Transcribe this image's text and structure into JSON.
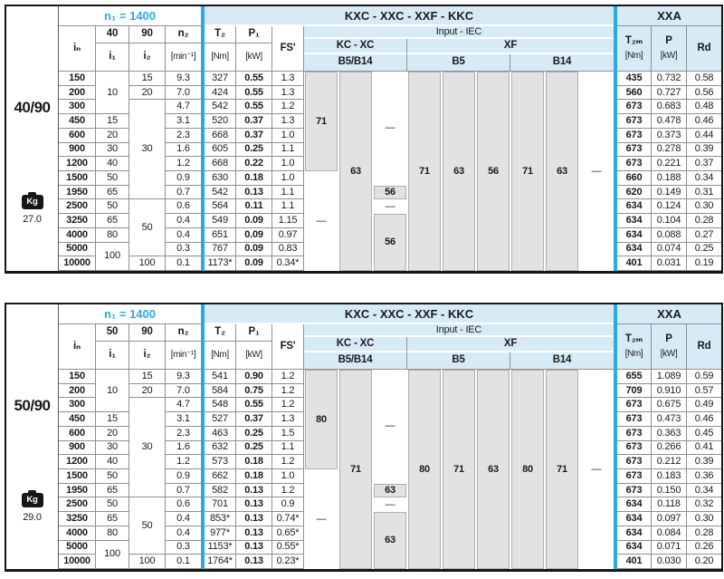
{
  "colors": {
    "cyan_accent": "#29abe2",
    "header_blue": "#d7ebf7",
    "iec_gray": "#e2e2e2",
    "grid_line": "#8f8f8f",
    "frame": "#161616"
  },
  "tables": [
    {
      "model": "40/90",
      "kg_label": "Kg",
      "weight": "27.0",
      "speed": "n₁ = 1400",
      "group_title": "KXC - XXC - XXF - KKC",
      "xxa_title": "XXA",
      "headers": {
        "in": "iₙ",
        "i1_ratio": "40",
        "i2_ratio": "90",
        "i1": "i₁",
        "i2": "i₂",
        "n2": "n₂",
        "n2_unit": "[min⁻¹]",
        "t2": "T₂",
        "t2_unit": "[Nm]",
        "p1": "P₁",
        "p1_unit": "[kW]",
        "fs": "FS'",
        "input_iec": "Input  -  IEC",
        "kc_xc": "KC - XC",
        "xf": "XF",
        "b5_b14": "B5/B14",
        "b5": "B5",
        "b14": "B14",
        "t2m": "T₂ₘ",
        "t2m_unit": "[Nm]",
        "p": "P",
        "p_unit": "[kW]",
        "rd": "Rd"
      },
      "i1_cells": [
        {
          "v": "10",
          "span": 3
        },
        {
          "v": "15",
          "span": 1
        },
        {
          "v": "20",
          "span": 1
        },
        {
          "v": "30",
          "span": 1
        },
        {
          "v": "40",
          "span": 1
        },
        {
          "v": "50",
          "span": 1
        },
        {
          "v": "65",
          "span": 1
        },
        {
          "v": "50",
          "span": 1
        },
        {
          "v": "65",
          "span": 1
        },
        {
          "v": "80",
          "span": 1
        },
        {
          "v": "100",
          "span": 2
        }
      ],
      "i2_cells": [
        {
          "v": "15",
          "span": 1
        },
        {
          "v": "20",
          "span": 1
        },
        {
          "v": "30",
          "span": 7
        },
        {
          "v": "50",
          "span": 4
        },
        {
          "v": "100",
          "span": 1
        }
      ],
      "rows": [
        {
          "in": "150",
          "n2": "9.3",
          "t2": "327",
          "p1": "0.55",
          "fs": "1.3",
          "t2m": "435",
          "p": "0.732",
          "rd": "0.58"
        },
        {
          "in": "200",
          "n2": "7.0",
          "t2": "424",
          "p1": "0.55",
          "fs": "1.3",
          "t2m": "560",
          "p": "0.727",
          "rd": "0.56"
        },
        {
          "in": "300",
          "n2": "4.7",
          "t2": "542",
          "p1": "0.55",
          "fs": "1.2",
          "t2m": "673",
          "p": "0.683",
          "rd": "0.48"
        },
        {
          "in": "450",
          "n2": "3.1",
          "t2": "520",
          "p1": "0.37",
          "fs": "1.3",
          "t2m": "673",
          "p": "0.478",
          "rd": "0.46"
        },
        {
          "in": "600",
          "n2": "2.3",
          "t2": "668",
          "p1": "0.37",
          "fs": "1.0",
          "t2m": "673",
          "p": "0.373",
          "rd": "0.44"
        },
        {
          "in": "900",
          "n2": "1.6",
          "t2": "605",
          "p1": "0.25",
          "fs": "1.1",
          "t2m": "673",
          "p": "0.278",
          "rd": "0.39"
        },
        {
          "in": "1200",
          "n2": "1.2",
          "t2": "668",
          "p1": "0.22",
          "fs": "1.0",
          "t2m": "673",
          "p": "0.221",
          "rd": "0.37"
        },
        {
          "in": "1500",
          "n2": "0.9",
          "t2": "630",
          "p1": "0.18",
          "fs": "1.0",
          "t2m": "660",
          "p": "0.188",
          "rd": "0.34"
        },
        {
          "in": "1950",
          "n2": "0.7",
          "t2": "542",
          "p1": "0.13",
          "fs": "1.1",
          "t2m": "620",
          "p": "0.149",
          "rd": "0.31"
        },
        {
          "in": "2500",
          "n2": "0.6",
          "t2": "564",
          "p1": "0.11",
          "fs": "1.1",
          "t2m": "634",
          "p": "0.124",
          "rd": "0.30"
        },
        {
          "in": "3250",
          "n2": "0.4",
          "t2": "549",
          "p1": "0.09",
          "fs": "1.15",
          "t2m": "634",
          "p": "0.104",
          "rd": "0.28"
        },
        {
          "in": "4000",
          "n2": "0.4",
          "t2": "651",
          "p1": "0.09",
          "fs": "0.97",
          "t2m": "634",
          "p": "0.088",
          "rd": "0.27"
        },
        {
          "in": "5000",
          "n2": "0.3",
          "t2": "767",
          "p1": "0.09",
          "fs": "0.83",
          "t2m": "634",
          "p": "0.074",
          "rd": "0.25"
        },
        {
          "in": "10000",
          "n2": "0.1",
          "t2": "1173*",
          "p1": "0.09",
          "fs": "0.34*",
          "t2m": "401",
          "p": "0.031",
          "rd": "0.19"
        }
      ],
      "iec_columns": [
        {
          "segments": [
            {
              "v": "71",
              "span": 7,
              "gray": true
            },
            {
              "v": "—",
              "span": 7,
              "gray": false
            }
          ]
        },
        {
          "segments": [
            {
              "v": "63",
              "span": 14,
              "gray": true
            }
          ]
        },
        {
          "segments": [
            {
              "v": "—",
              "span": 8,
              "gray": false
            },
            {
              "v": "56",
              "span": 1,
              "gray": true
            },
            {
              "v": "—",
              "span": 1,
              "gray": false
            },
            {
              "v": "56",
              "span": 4,
              "gray": true
            }
          ]
        },
        {
          "segments": [
            {
              "v": "71",
              "span": 14,
              "gray": true
            }
          ]
        },
        {
          "segments": [
            {
              "v": "63",
              "span": 14,
              "gray": true
            }
          ]
        },
        {
          "segments": [
            {
              "v": "56",
              "span": 14,
              "gray": true
            }
          ]
        },
        {
          "segments": [
            {
              "v": "71",
              "span": 14,
              "gray": true
            }
          ]
        },
        {
          "segments": [
            {
              "v": "63",
              "span": 14,
              "gray": true
            }
          ]
        },
        {
          "segments": [
            {
              "v": "—",
              "span": 14,
              "gray": false
            }
          ]
        }
      ]
    },
    {
      "model": "50/90",
      "kg_label": "Kg",
      "weight": "29.0",
      "speed": "n₁ = 1400",
      "group_title": "KXC - XXC - XXF - KKC",
      "xxa_title": "XXA",
      "headers": {
        "in": "iₙ",
        "i1_ratio": "50",
        "i2_ratio": "90",
        "i1": "i₁",
        "i2": "i₂",
        "n2": "n₂",
        "n2_unit": "[min⁻¹]",
        "t2": "T₂",
        "t2_unit": "[Nm]",
        "p1": "P₁",
        "p1_unit": "[kW]",
        "fs": "FS'",
        "input_iec": "Input  -  IEC",
        "kc_xc": "KC - XC",
        "xf": "XF",
        "b5_b14": "B5/B14",
        "b5": "B5",
        "b14": "B14",
        "t2m": "T₂ₘ",
        "t2m_unit": "[Nm]",
        "p": "P",
        "p_unit": "[kW]",
        "rd": "Rd"
      },
      "i1_cells": [
        {
          "v": "10",
          "span": 3
        },
        {
          "v": "15",
          "span": 1
        },
        {
          "v": "20",
          "span": 1
        },
        {
          "v": "30",
          "span": 1
        },
        {
          "v": "40",
          "span": 1
        },
        {
          "v": "50",
          "span": 1
        },
        {
          "v": "65",
          "span": 1
        },
        {
          "v": "50",
          "span": 1
        },
        {
          "v": "65",
          "span": 1
        },
        {
          "v": "80",
          "span": 1
        },
        {
          "v": "100",
          "span": 2
        }
      ],
      "i2_cells": [
        {
          "v": "15",
          "span": 1
        },
        {
          "v": "20",
          "span": 1
        },
        {
          "v": "30",
          "span": 7
        },
        {
          "v": "50",
          "span": 4
        },
        {
          "v": "100",
          "span": 1
        }
      ],
      "rows": [
        {
          "in": "150",
          "n2": "9.3",
          "t2": "541",
          "p1": "0.90",
          "fs": "1.2",
          "t2m": "655",
          "p": "1.089",
          "rd": "0.59"
        },
        {
          "in": "200",
          "n2": "7.0",
          "t2": "584",
          "p1": "0.75",
          "fs": "1.2",
          "t2m": "709",
          "p": "0.910",
          "rd": "0.57"
        },
        {
          "in": "300",
          "n2": "4.7",
          "t2": "548",
          "p1": "0.55",
          "fs": "1.2",
          "t2m": "673",
          "p": "0.675",
          "rd": "0.49"
        },
        {
          "in": "450",
          "n2": "3.1",
          "t2": "527",
          "p1": "0.37",
          "fs": "1.3",
          "t2m": "673",
          "p": "0.473",
          "rd": "0.46"
        },
        {
          "in": "600",
          "n2": "2.3",
          "t2": "463",
          "p1": "0.25",
          "fs": "1.5",
          "t2m": "673",
          "p": "0.363",
          "rd": "0.45"
        },
        {
          "in": "900",
          "n2": "1.6",
          "t2": "632",
          "p1": "0.25",
          "fs": "1.1",
          "t2m": "673",
          "p": "0.266",
          "rd": "0.41"
        },
        {
          "in": "1200",
          "n2": "1.2",
          "t2": "573",
          "p1": "0.18",
          "fs": "1.2",
          "t2m": "673",
          "p": "0.212",
          "rd": "0.39"
        },
        {
          "in": "1500",
          "n2": "0.9",
          "t2": "662",
          "p1": "0.18",
          "fs": "1.0",
          "t2m": "673",
          "p": "0.183",
          "rd": "0.36"
        },
        {
          "in": "1950",
          "n2": "0.7",
          "t2": "582",
          "p1": "0.13",
          "fs": "1.2",
          "t2m": "673",
          "p": "0.150",
          "rd": "0.34"
        },
        {
          "in": "2500",
          "n2": "0.6",
          "t2": "701",
          "p1": "0.13",
          "fs": "0.9",
          "t2m": "634",
          "p": "0.118",
          "rd": "0.32"
        },
        {
          "in": "3250",
          "n2": "0.4",
          "t2": "853*",
          "p1": "0.13",
          "fs": "0.74*",
          "t2m": "634",
          "p": "0.097",
          "rd": "0.30"
        },
        {
          "in": "4000",
          "n2": "0.4",
          "t2": "977*",
          "p1": "0.13",
          "fs": "0.65*",
          "t2m": "634",
          "p": "0.084",
          "rd": "0.28"
        },
        {
          "in": "5000",
          "n2": "0.3",
          "t2": "1153*",
          "p1": "0.13",
          "fs": "0.55*",
          "t2m": "634",
          "p": "0.071",
          "rd": "0.26"
        },
        {
          "in": "10000",
          "n2": "0.1",
          "t2": "1764*",
          "p1": "0.13",
          "fs": "0.23*",
          "t2m": "401",
          "p": "0.030",
          "rd": "0.20"
        }
      ],
      "iec_columns": [
        {
          "segments": [
            {
              "v": "80",
              "span": 7,
              "gray": true
            },
            {
              "v": "—",
              "span": 7,
              "gray": false
            }
          ]
        },
        {
          "segments": [
            {
              "v": "71",
              "span": 14,
              "gray": true
            }
          ]
        },
        {
          "segments": [
            {
              "v": "—",
              "span": 8,
              "gray": false
            },
            {
              "v": "63",
              "span": 1,
              "gray": true
            },
            {
              "v": "—",
              "span": 1,
              "gray": false
            },
            {
              "v": "63",
              "span": 4,
              "gray": true
            }
          ]
        },
        {
          "segments": [
            {
              "v": "80",
              "span": 14,
              "gray": true
            }
          ]
        },
        {
          "segments": [
            {
              "v": "71",
              "span": 14,
              "gray": true
            }
          ]
        },
        {
          "segments": [
            {
              "v": "63",
              "span": 14,
              "gray": true
            }
          ]
        },
        {
          "segments": [
            {
              "v": "80",
              "span": 14,
              "gray": true
            }
          ]
        },
        {
          "segments": [
            {
              "v": "71",
              "span": 14,
              "gray": true
            }
          ]
        },
        {
          "segments": [
            {
              "v": "—",
              "span": 14,
              "gray": false
            }
          ]
        }
      ]
    }
  ]
}
